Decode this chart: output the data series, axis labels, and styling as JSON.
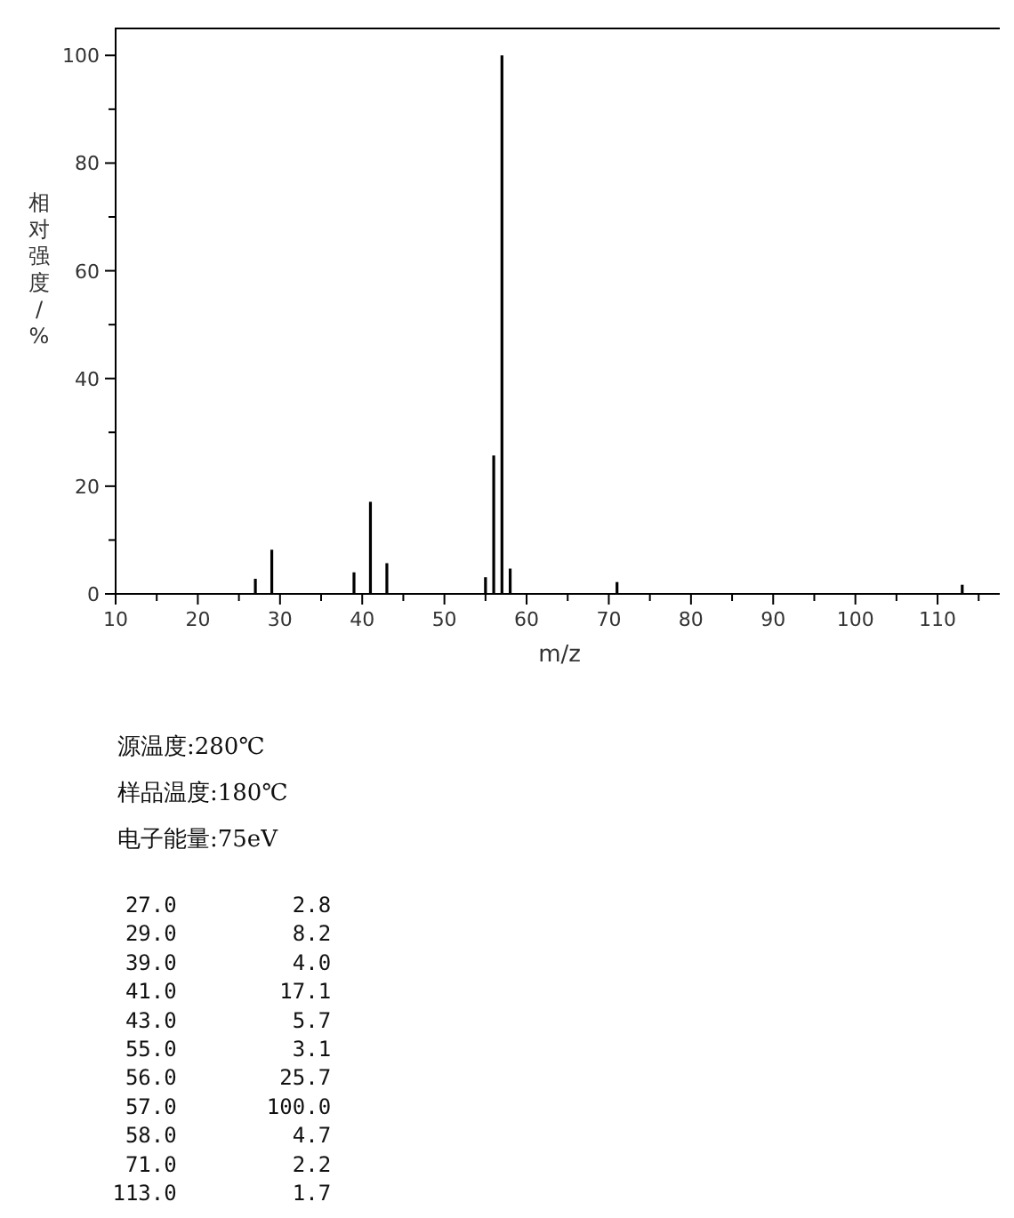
{
  "chart_data": {
    "type": "bar",
    "xlabel": "m/z",
    "ylabel": "相对强度/%",
    "x": [
      27,
      29,
      39,
      41,
      43,
      55,
      56,
      57,
      58,
      71,
      113
    ],
    "values": [
      2.8,
      8.2,
      4.0,
      17.1,
      5.7,
      3.1,
      25.7,
      100.0,
      4.7,
      2.2,
      1.7
    ],
    "color": "#000000",
    "xlim": [
      10,
      118
    ],
    "ylim": [
      0,
      105
    ],
    "xticks": [
      10,
      {
        "value": 15,
        "label": null
      },
      20,
      {
        "value": 25,
        "label": null
      },
      30,
      {
        "value": 35,
        "label": null
      },
      40,
      {
        "value": 45,
        "label": null
      },
      50,
      {
        "value": 55,
        "label": null
      },
      60,
      {
        "value": 65,
        "label": null
      },
      70,
      {
        "value": 75,
        "label": null
      },
      80,
      {
        "value": 85,
        "label": null
      },
      90,
      {
        "value": 95,
        "label": null
      },
      100,
      {
        "value": 105,
        "label": null
      },
      110,
      {
        "value": 115,
        "label": null
      }
    ],
    "yticks": [
      0,
      {
        "value": 10,
        "label": null
      },
      20,
      {
        "value": 30,
        "label": null
      },
      40,
      {
        "value": 50,
        "label": null
      },
      60,
      {
        "value": 70,
        "label": null
      },
      80,
      {
        "value": 90,
        "label": null
      },
      100
    ],
    "annotations": [
      "源温度:280℃",
      "样品温度:180℃",
      "电子能量:75eV",
      "27.0 2.8",
      "29.0 8.2",
      "39.0 4.0",
      "41.0 17.1",
      "43.0 5.7",
      "55.0 3.1",
      "56.0 25.7",
      "57.0 100.0",
      "58.0 4.7",
      "71.0 2.2",
      "113.0 1.7"
    ],
    "grid": false
  }
}
